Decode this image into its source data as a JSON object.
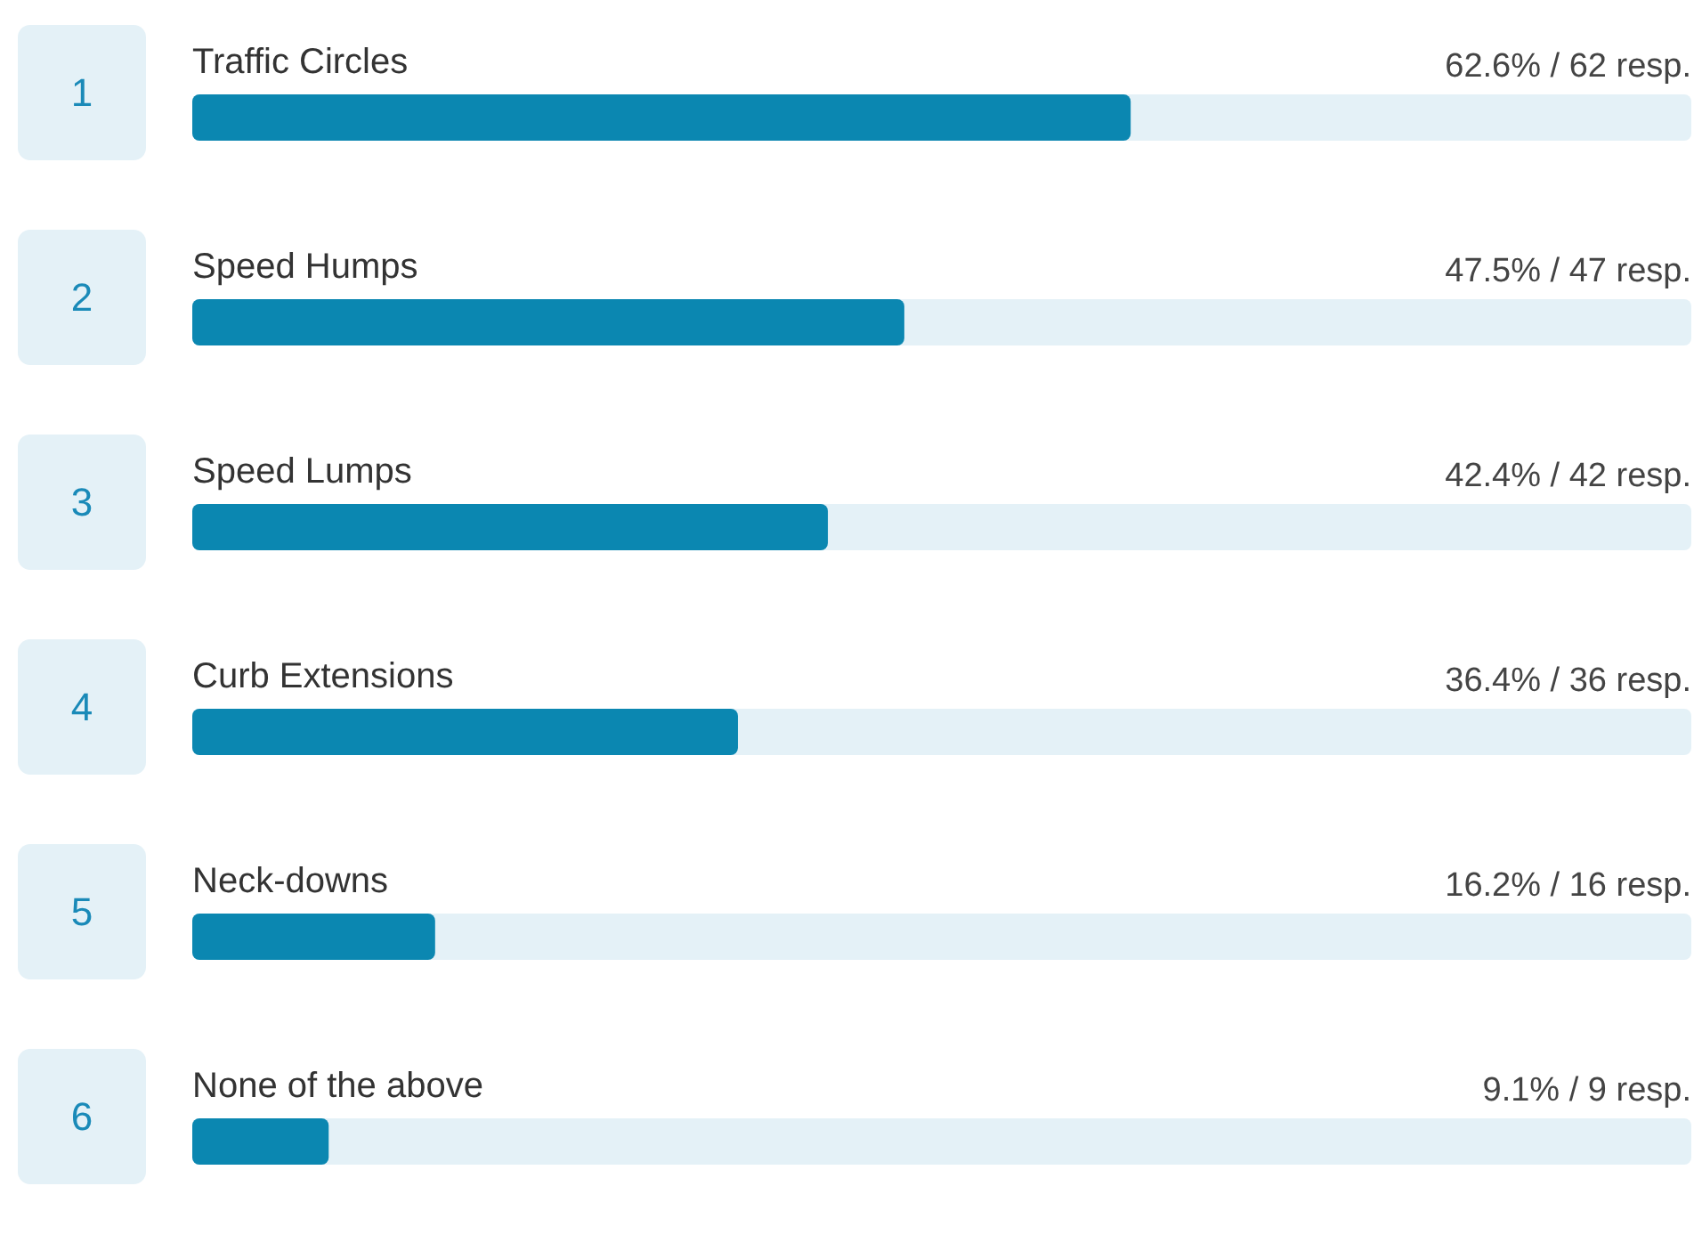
{
  "chart_data": {
    "type": "bar",
    "orientation": "horizontal",
    "categories": [
      "Traffic Circles",
      "Speed Humps",
      "Speed Lumps",
      "Curb Extensions",
      "Neck-downs",
      "None of the above"
    ],
    "values": [
      62.6,
      47.5,
      42.4,
      36.4,
      16.2,
      9.1
    ],
    "value_labels": [
      "62.6% / 62 resp.",
      "47.5% / 47 resp.",
      "42.4% / 42 resp.",
      "36.4% / 36 resp.",
      "16.2% / 16 resp.",
      "9.1% / 9 resp."
    ],
    "color": "#0b87b1",
    "xlim": [
      0,
      100
    ],
    "tick_labels": false,
    "annotations": [
      "1",
      "2",
      "3",
      "4",
      "5",
      "6"
    ]
  }
}
